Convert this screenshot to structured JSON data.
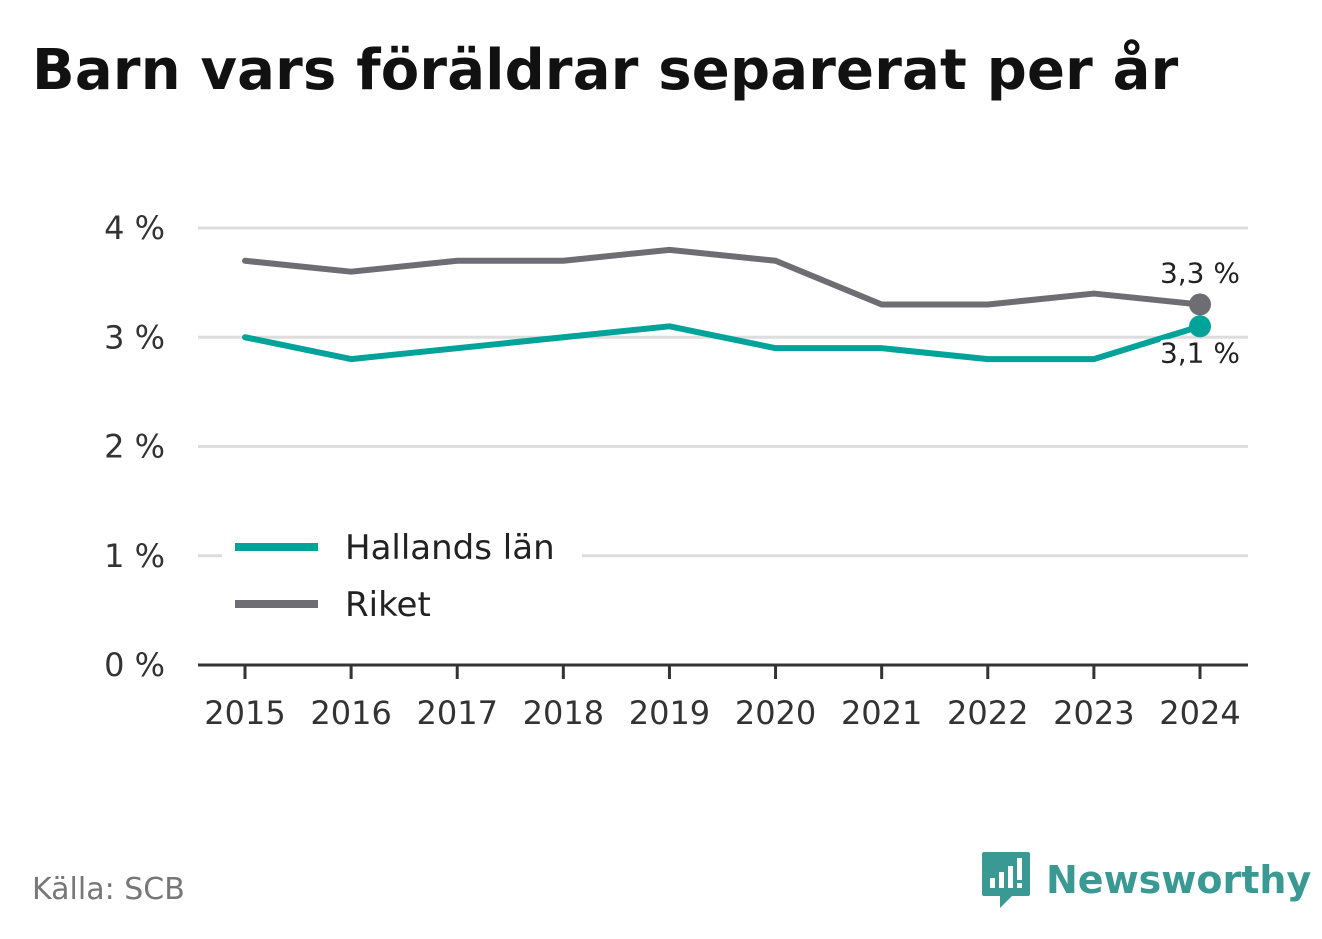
{
  "header": {
    "title": "Barn vars föräldrar separerat per år"
  },
  "footer": {
    "source": "Källa: SCB",
    "brand": "Newsworthy",
    "brand_icon": "newsworthy-logo-icon"
  },
  "colors": {
    "hallands": "#00a39a",
    "riket": "#6e6d73",
    "grid": "#dddddd",
    "axis": "#333333",
    "brand": "#3a9a93"
  },
  "chart_data": {
    "type": "line",
    "title": "Barn vars föräldrar separerat per år",
    "xlabel": "",
    "ylabel": "",
    "x": [
      "2015",
      "2016",
      "2017",
      "2018",
      "2019",
      "2020",
      "2021",
      "2022",
      "2023",
      "2024"
    ],
    "ylim": [
      0,
      4
    ],
    "y_ticks": [
      0,
      1,
      2,
      3,
      4
    ],
    "y_tick_labels": [
      "0 %",
      "1 %",
      "2 %",
      "3 %",
      "4 %"
    ],
    "grid": true,
    "legend_position": "lower-left",
    "series": [
      {
        "name": "Hallands län",
        "color": "#00a39a",
        "values": [
          3.0,
          2.8,
          2.9,
          3.0,
          3.1,
          2.9,
          2.9,
          2.8,
          2.8,
          3.1
        ],
        "end_label": "3,1 %"
      },
      {
        "name": "Riket",
        "color": "#6e6d73",
        "values": [
          3.7,
          3.6,
          3.7,
          3.7,
          3.8,
          3.7,
          3.3,
          3.3,
          3.4,
          3.3
        ],
        "end_label": "3,3 %"
      }
    ]
  }
}
